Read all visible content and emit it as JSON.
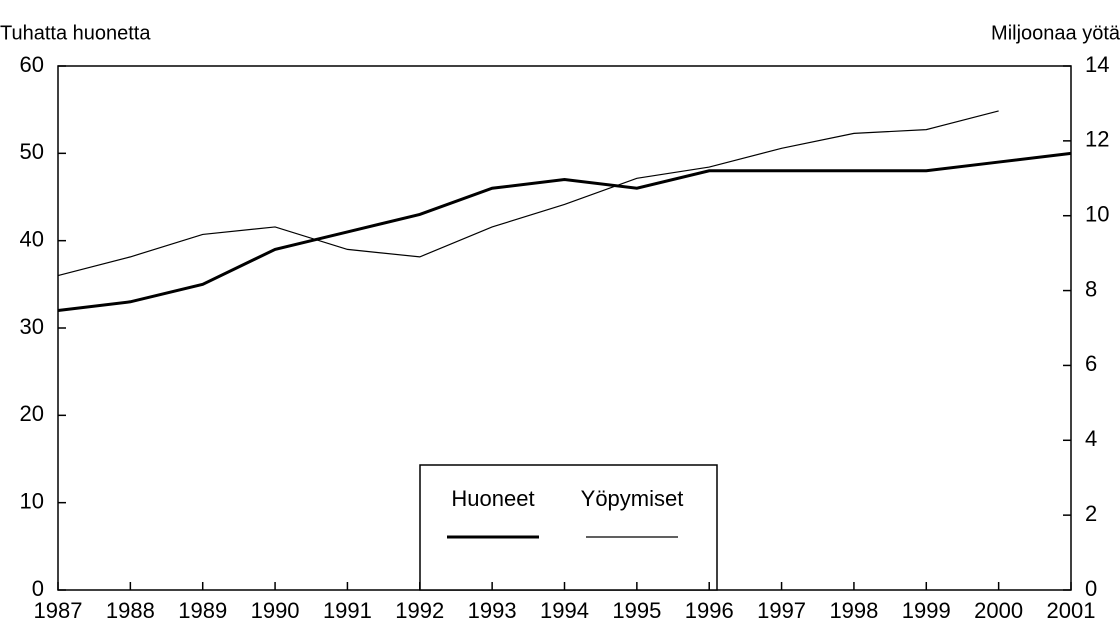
{
  "chart_data": {
    "type": "line",
    "y_label": "Tuhatta huonetta",
    "y2_label": "Miljoonaa yötä",
    "x": [
      1987,
      1988,
      1989,
      1990,
      1991,
      1992,
      1993,
      1994,
      1995,
      1996,
      1997,
      1998,
      1999,
      2000,
      2001
    ],
    "xlim": [
      1987,
      2001
    ],
    "xticks": [
      1987,
      1988,
      1989,
      1990,
      1991,
      1992,
      1993,
      1994,
      1995,
      1996,
      1997,
      1998,
      1999,
      2000,
      2001
    ],
    "ylim": [
      0,
      60
    ],
    "yticks": [
      0,
      10,
      20,
      30,
      40,
      50,
      60
    ],
    "y2lim": [
      0,
      14
    ],
    "y2ticks": [
      0,
      2,
      4,
      6,
      8,
      10,
      12,
      14
    ],
    "grid": false,
    "series": [
      {
        "name": "Huoneet",
        "color": "#000000",
        "values": [
          32,
          33,
          35,
          39,
          41,
          43,
          46,
          47,
          46,
          48,
          48,
          48,
          48,
          49,
          50
        ]
      },
      {
        "name": "Yöpymiset",
        "color": "#000000",
        "axis": "y2",
        "values": [
          8.4,
          8.9,
          9.5,
          9.7,
          9.1,
          8.9,
          9.7,
          10.3,
          11.0,
          11.3,
          11.8,
          12.2,
          12.3,
          12.8,
          null
        ]
      }
    ]
  }
}
